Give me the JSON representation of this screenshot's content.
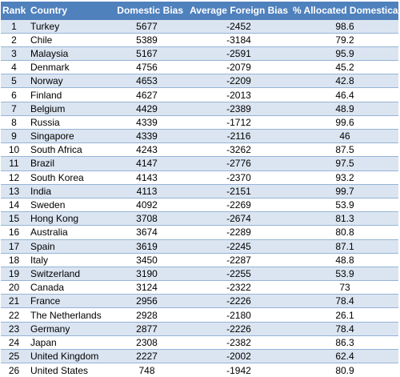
{
  "table": {
    "headers": {
      "rank": "Rank",
      "country": "Country",
      "domestic_bias": "Domestic Bias",
      "average_foreign_bias": "Average Foreign Bias",
      "pct_allocated_domestically": "% Allocated Domestically"
    },
    "rows": [
      {
        "rank": "1",
        "country": "Turkey",
        "domestic_bias": "5677",
        "average_foreign_bias": "-2452",
        "pct": "98.6"
      },
      {
        "rank": "2",
        "country": "Chile",
        "domestic_bias": "5389",
        "average_foreign_bias": "-3184",
        "pct": "79.2"
      },
      {
        "rank": "3",
        "country": "Malaysia",
        "domestic_bias": "5167",
        "average_foreign_bias": "-2591",
        "pct": "95.9"
      },
      {
        "rank": "4",
        "country": "Denmark",
        "domestic_bias": "4756",
        "average_foreign_bias": "-2079",
        "pct": "45.2"
      },
      {
        "rank": "5",
        "country": "Norway",
        "domestic_bias": "4653",
        "average_foreign_bias": "-2209",
        "pct": "42.8"
      },
      {
        "rank": "6",
        "country": "Finland",
        "domestic_bias": "4627",
        "average_foreign_bias": "-2013",
        "pct": "46.4"
      },
      {
        "rank": "7",
        "country": "Belgium",
        "domestic_bias": "4429",
        "average_foreign_bias": "-2389",
        "pct": "48.9"
      },
      {
        "rank": "8",
        "country": "Russia",
        "domestic_bias": "4339",
        "average_foreign_bias": "-1712",
        "pct": "99.6"
      },
      {
        "rank": "9",
        "country": "Singapore",
        "domestic_bias": "4339",
        "average_foreign_bias": "-2116",
        "pct": "46"
      },
      {
        "rank": "10",
        "country": "South Africa",
        "domestic_bias": "4243",
        "average_foreign_bias": "-3262",
        "pct": "87.5"
      },
      {
        "rank": "11",
        "country": "Brazil",
        "domestic_bias": "4147",
        "average_foreign_bias": "-2776",
        "pct": "97.5"
      },
      {
        "rank": "12",
        "country": "South Korea",
        "domestic_bias": "4143",
        "average_foreign_bias": "-2370",
        "pct": "93.2"
      },
      {
        "rank": "13",
        "country": "India",
        "domestic_bias": "4113",
        "average_foreign_bias": "-2151",
        "pct": "99.7"
      },
      {
        "rank": "14",
        "country": "Sweden",
        "domestic_bias": "4092",
        "average_foreign_bias": "-2269",
        "pct": "53.9"
      },
      {
        "rank": "15",
        "country": "Hong Kong",
        "domestic_bias": "3708",
        "average_foreign_bias": "-2674",
        "pct": "81.3"
      },
      {
        "rank": "16",
        "country": "Australia",
        "domestic_bias": "3674",
        "average_foreign_bias": "-2289",
        "pct": "80.8"
      },
      {
        "rank": "17",
        "country": "Spain",
        "domestic_bias": "3619",
        "average_foreign_bias": "-2245",
        "pct": "87.1"
      },
      {
        "rank": "18",
        "country": "Italy",
        "domestic_bias": "3450",
        "average_foreign_bias": "-2287",
        "pct": "48.8"
      },
      {
        "rank": "19",
        "country": "Switzerland",
        "domestic_bias": "3190",
        "average_foreign_bias": "-2255",
        "pct": "53.9"
      },
      {
        "rank": "20",
        "country": "Canada",
        "domestic_bias": "3124",
        "average_foreign_bias": "-2322",
        "pct": "73"
      },
      {
        "rank": "21",
        "country": "France",
        "domestic_bias": "2956",
        "average_foreign_bias": "-2226",
        "pct": "78.4"
      },
      {
        "rank": "22",
        "country": "The Netherlands",
        "domestic_bias": "2928",
        "average_foreign_bias": "-2180",
        "pct": "26.1"
      },
      {
        "rank": "23",
        "country": "Germany",
        "domestic_bias": "2877",
        "average_foreign_bias": "-2226",
        "pct": "78.4"
      },
      {
        "rank": "24",
        "country": "Japan",
        "domestic_bias": "2308",
        "average_foreign_bias": "-2382",
        "pct": "86.3"
      },
      {
        "rank": "25",
        "country": "United Kingdom",
        "domestic_bias": "2227",
        "average_foreign_bias": "-2002",
        "pct": "62.4"
      },
      {
        "rank": "26",
        "country": "United States",
        "domestic_bias": "748",
        "average_foreign_bias": "-1942",
        "pct": "80.9"
      }
    ]
  },
  "colors": {
    "header_bg": "#4f81bd",
    "header_text": "#ffffff",
    "band_bg": "#dbe5f1",
    "row_rule": "#95b3d7"
  }
}
